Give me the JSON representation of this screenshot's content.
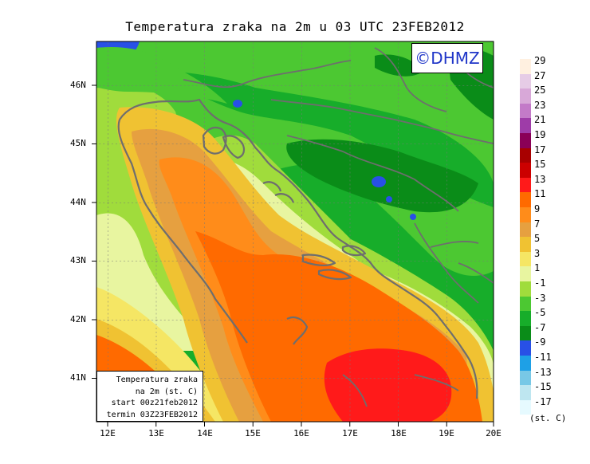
{
  "title": "Temperatura zraka na 2m u 03 UTC 23FEB2012",
  "logo": "©DHMZ",
  "infobox": {
    "line1": "Temperatura zraka",
    "line2": "na 2m (st. C)",
    "line3": "start 00z21feb2012",
    "line4": "termin 03Z23FEB2012"
  },
  "axes": {
    "lat_labels": [
      "46N",
      "45N",
      "44N",
      "43N",
      "42N",
      "41N"
    ],
    "lon_labels": [
      "12E",
      "13E",
      "14E",
      "15E",
      "16E",
      "17E",
      "18E",
      "19E",
      "20E"
    ]
  },
  "legend": {
    "unit": "(st. C)",
    "labels": [
      "29",
      "27",
      "25",
      "23",
      "21",
      "19",
      "17",
      "15",
      "13",
      "11",
      "9",
      "7",
      "5",
      "3",
      "1",
      "-1",
      "-3",
      "-5",
      "-7",
      "-9",
      "-11",
      "-13",
      "-15",
      "-17"
    ],
    "colors": [
      "#fff0e0",
      "#e6cce6",
      "#d8a8d8",
      "#c37ac8",
      "#9e3ca8",
      "#8a0057",
      "#a80000",
      "#cc0000",
      "#ff1a1a",
      "#ff6a00",
      "#ff8c1a",
      "#e6a040",
      "#f0c232",
      "#f5e664",
      "#e8f5a0",
      "#a0dc3c",
      "#4cc832",
      "#17ad2a",
      "#0a8c18",
      "#2850e6",
      "#1ea0e6",
      "#78c8e6",
      "#bee6f0",
      "#e6faff"
    ]
  }
}
